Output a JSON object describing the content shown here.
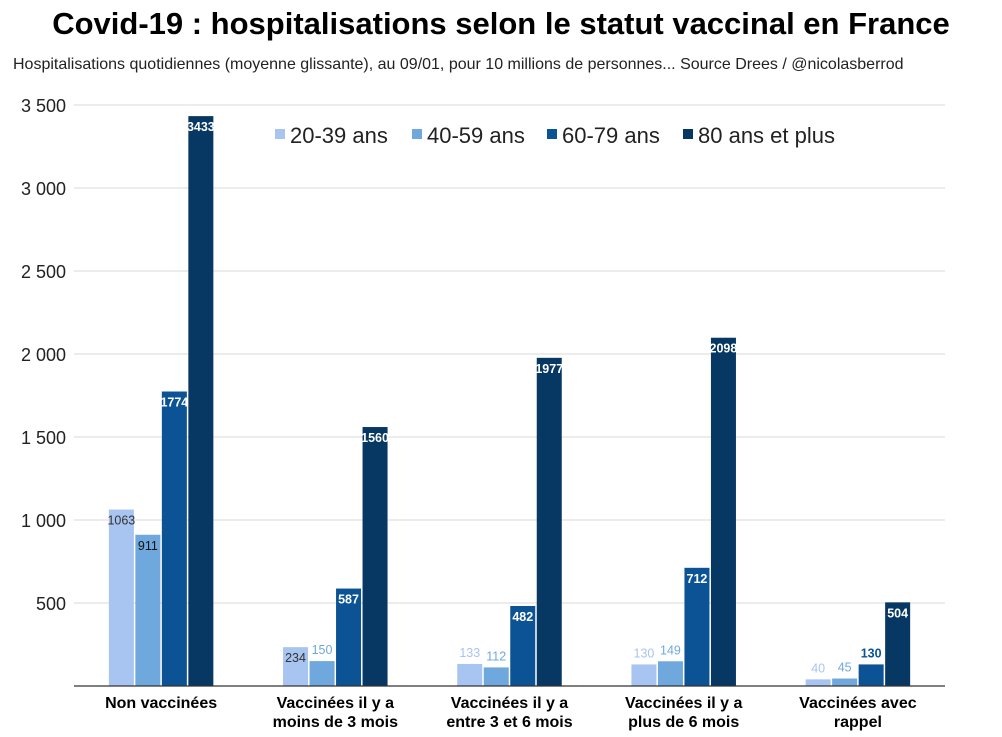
{
  "title": "Covid-19 : hospitalisations selon le statut vaccinal en France",
  "subtitle": "Hospitalisations quotidiennes (moyenne glissante), au 09/01, pour 10 millions de personnes... Source Drees / @nicolasberrod",
  "chart_data": {
    "type": "bar",
    "categories": [
      [
        "Non vaccinées"
      ],
      [
        "Vaccinées il y a",
        "moins de 3 mois"
      ],
      [
        "Vaccinées il y a",
        "entre 3 et 6 mois"
      ],
      [
        "Vaccinées il y a",
        "plus de 6 mois"
      ],
      [
        "Vaccinées avec",
        "rappel"
      ]
    ],
    "series": [
      {
        "name": "20-39 ans",
        "color": "#a8c4f0",
        "values": [
          1063,
          234,
          133,
          130,
          40
        ]
      },
      {
        "name": "40-59 ans",
        "color": "#6fa8dc",
        "values": [
          911,
          150,
          112,
          149,
          45
        ]
      },
      {
        "name": "60-79 ans",
        "color": "#0b5394",
        "values": [
          1774,
          587,
          482,
          712,
          130
        ]
      },
      {
        "name": "80 ans et plus",
        "color": "#073763",
        "values": [
          3433,
          1560,
          1977,
          2098,
          504
        ]
      }
    ],
    "ylim": [
      0,
      3500
    ],
    "yticks": [
      {
        "value": 500,
        "label": "500"
      },
      {
        "value": 1000,
        "label": "1 000"
      },
      {
        "value": 1500,
        "label": "1 500"
      },
      {
        "value": 2000,
        "label": "2 000"
      },
      {
        "value": 2500,
        "label": "2 500"
      },
      {
        "value": 3000,
        "label": "3 000"
      },
      {
        "value": 3500,
        "label": "3 500"
      }
    ],
    "grid": true,
    "legend_position": "top"
  }
}
